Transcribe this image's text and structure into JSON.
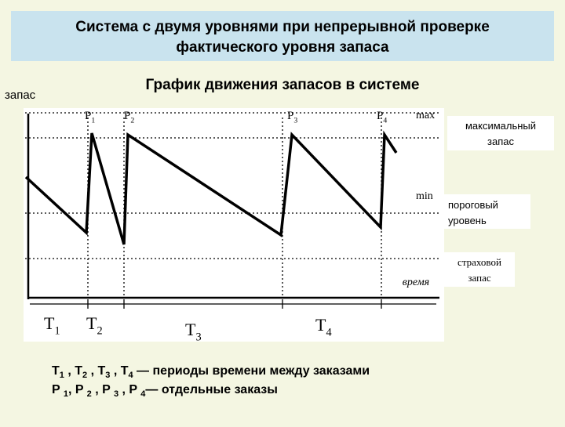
{
  "header": {
    "title_lines": [
      "Система с двумя уровнями при непрерывной проверке",
      "фактического уровня запаса"
    ]
  },
  "diagram": {
    "title": "График движения запасов в системе",
    "y_axis_label": "запас",
    "max_label": "max",
    "min_label": "min",
    "time_label": "время",
    "orders": [
      {
        "letter": "P",
        "sub": "1"
      },
      {
        "letter": "P",
        "sub": "2"
      },
      {
        "letter": "P",
        "sub": "3"
      },
      {
        "letter": "P",
        "sub": "4"
      }
    ],
    "periods": [
      {
        "letter": "T",
        "sub": "1"
      },
      {
        "letter": "T",
        "sub": "2"
      },
      {
        "letter": "T",
        "sub": "3"
      },
      {
        "letter": "T",
        "sub": "4"
      }
    ],
    "callouts": [
      [
        "максимальный",
        "запас"
      ],
      [
        "пороговый",
        "уровень"
      ],
      [
        "страховой",
        "запас"
      ]
    ]
  },
  "legend": [
    [
      "T",
      "1",
      " , T",
      "2",
      " , T",
      "3",
      " , T",
      "4",
      " — периоды времени между заказами"
    ],
    [
      "P ",
      "1",
      ", P ",
      "2",
      " , P ",
      "3",
      " , P ",
      "4",
      "— отдельные заказы"
    ]
  ]
}
